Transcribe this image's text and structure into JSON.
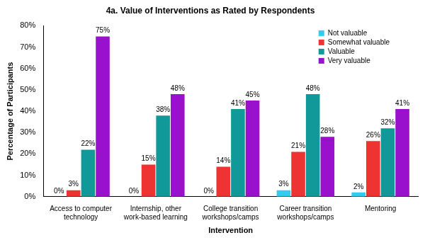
{
  "chart_data": {
    "type": "bar",
    "title": "4a. Value of Interventions as Rated by Respondents",
    "x_label": "Intervention",
    "y_label": "Percentage of Participants",
    "categories": [
      "Access to computer technology",
      "Internship, other work-based learning",
      "College transition workshops/camps",
      "Career transition workshops/camps",
      "Mentoring"
    ],
    "series": [
      {
        "name": "Not valuable",
        "color": "#33ccee",
        "values": [
          0,
          0,
          0,
          3,
          2
        ],
        "value_labels": [
          "0%",
          "0%",
          "0%",
          "3%",
          "2%"
        ]
      },
      {
        "name": "Somewhat valuable",
        "color": "#ee3333",
        "values": [
          3,
          15,
          14,
          21,
          26
        ],
        "value_labels": [
          "3%",
          "15%",
          "14%",
          "21%",
          "26%"
        ]
      },
      {
        "name": "Valuable",
        "color": "#119999",
        "values": [
          22,
          38,
          41,
          48,
          32
        ],
        "value_labels": [
          "22%",
          "38%",
          "41%",
          "48%",
          "32%"
        ]
      },
      {
        "name": "Very valuable",
        "color": "#9911cc",
        "values": [
          75,
          48,
          45,
          28,
          41
        ],
        "value_labels": [
          "75%",
          "48%",
          "45%",
          "28%",
          "41%"
        ]
      }
    ],
    "ylim": [
      0,
      80
    ],
    "yticks": [
      {
        "value": 0,
        "label": "0%"
      },
      {
        "value": 10,
        "label": "10%"
      },
      {
        "value": 20,
        "label": "20%"
      },
      {
        "value": 30,
        "label": "30%"
      },
      {
        "value": 40,
        "label": "40%"
      },
      {
        "value": 50,
        "label": "50%"
      },
      {
        "value": 60,
        "label": "60%"
      },
      {
        "value": 70,
        "label": "70%"
      },
      {
        "value": 80,
        "label": "80%"
      }
    ],
    "grid": false,
    "legend": "upper right",
    "data_labels": true
  }
}
